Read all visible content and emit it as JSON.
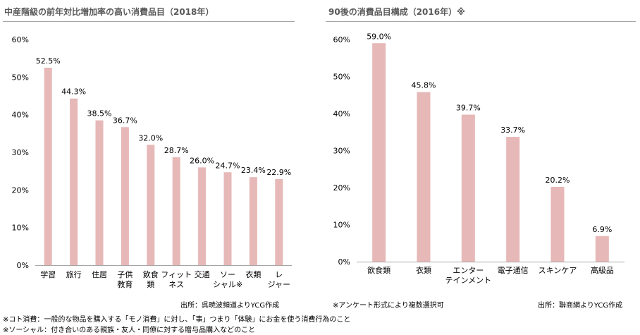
{
  "left": {
    "title": "中産階級の前年対比増加率の高い消費品目（2018年）",
    "source": "出所：呉暁波頻道よりYCG作成"
  },
  "right": {
    "title": "90後の消費品目構成（2016年）※",
    "asterisk_note": "※アンケート形式により複数選択可",
    "source": "出所：聯商網よりYCG作成"
  },
  "footnotes": [
    "※コト消費：一般的な物品を購入する「モノ消費」に対し、「事」つまり「体験」にお金を使う消費行為のこと",
    "※ソーシャル：付き合いのある親族・友人・同僚に対する贈与品購入などのこと"
  ],
  "colors": {
    "bar": "#e6b8b7",
    "axis": "#a6a6a6"
  },
  "chart_data": [
    {
      "type": "bar",
      "title": "中産階級の前年対比増加率の高い消費品目（2018年）",
      "categories": [
        "学習",
        "旅行",
        "住居",
        "子供教育",
        "飲食類",
        "フィットネス",
        "交通",
        "ソーシャル※",
        "衣類",
        "レジャー"
      ],
      "category_lines": [
        [
          "学習"
        ],
        [
          "旅行"
        ],
        [
          "住居"
        ],
        [
          "子供",
          "教育"
        ],
        [
          "飲食",
          "類"
        ],
        [
          "フィット",
          "ネス"
        ],
        [
          "交通"
        ],
        [
          "ソー",
          "シャル※"
        ],
        [
          "衣類"
        ],
        [
          "レ",
          "ジャー"
        ]
      ],
      "values": [
        52.5,
        44.3,
        38.5,
        36.7,
        32.0,
        28.7,
        26.0,
        24.7,
        23.4,
        22.9
      ],
      "value_labels": [
        "52.5%",
        "44.3%",
        "38.5%",
        "36.7%",
        "32.0%",
        "28.7%",
        "26.0%",
        "24.7%",
        "23.4%",
        "22.9%"
      ],
      "ylim": [
        0,
        60
      ],
      "yticks": [
        0,
        10,
        20,
        30,
        40,
        50,
        60
      ],
      "ytick_labels": [
        "0%",
        "10%",
        "20%",
        "30%",
        "40%",
        "50%",
        "60%"
      ],
      "grid": false
    },
    {
      "type": "bar",
      "title": "90後の消費品目構成（2016年）※",
      "categories": [
        "飲食類",
        "衣類",
        "エンターテインメント",
        "電子通信",
        "スキンケア",
        "高級品"
      ],
      "category_lines": [
        [
          "飲食類"
        ],
        [
          "衣類"
        ],
        [
          "エンター",
          "テインメント"
        ],
        [
          "電子通信"
        ],
        [
          "スキンケア"
        ],
        [
          "高級品"
        ]
      ],
      "values": [
        59.0,
        45.8,
        39.7,
        33.7,
        20.2,
        6.9
      ],
      "value_labels": [
        "59.0%",
        "45.8%",
        "39.7%",
        "33.7%",
        "20.2%",
        "6.9%"
      ],
      "ylim": [
        0,
        60
      ],
      "yticks": [
        0,
        10,
        20,
        30,
        40,
        50,
        60
      ],
      "ytick_labels": [
        "0%",
        "10%",
        "20%",
        "30%",
        "40%",
        "50%",
        "60%"
      ],
      "grid": false
    }
  ]
}
